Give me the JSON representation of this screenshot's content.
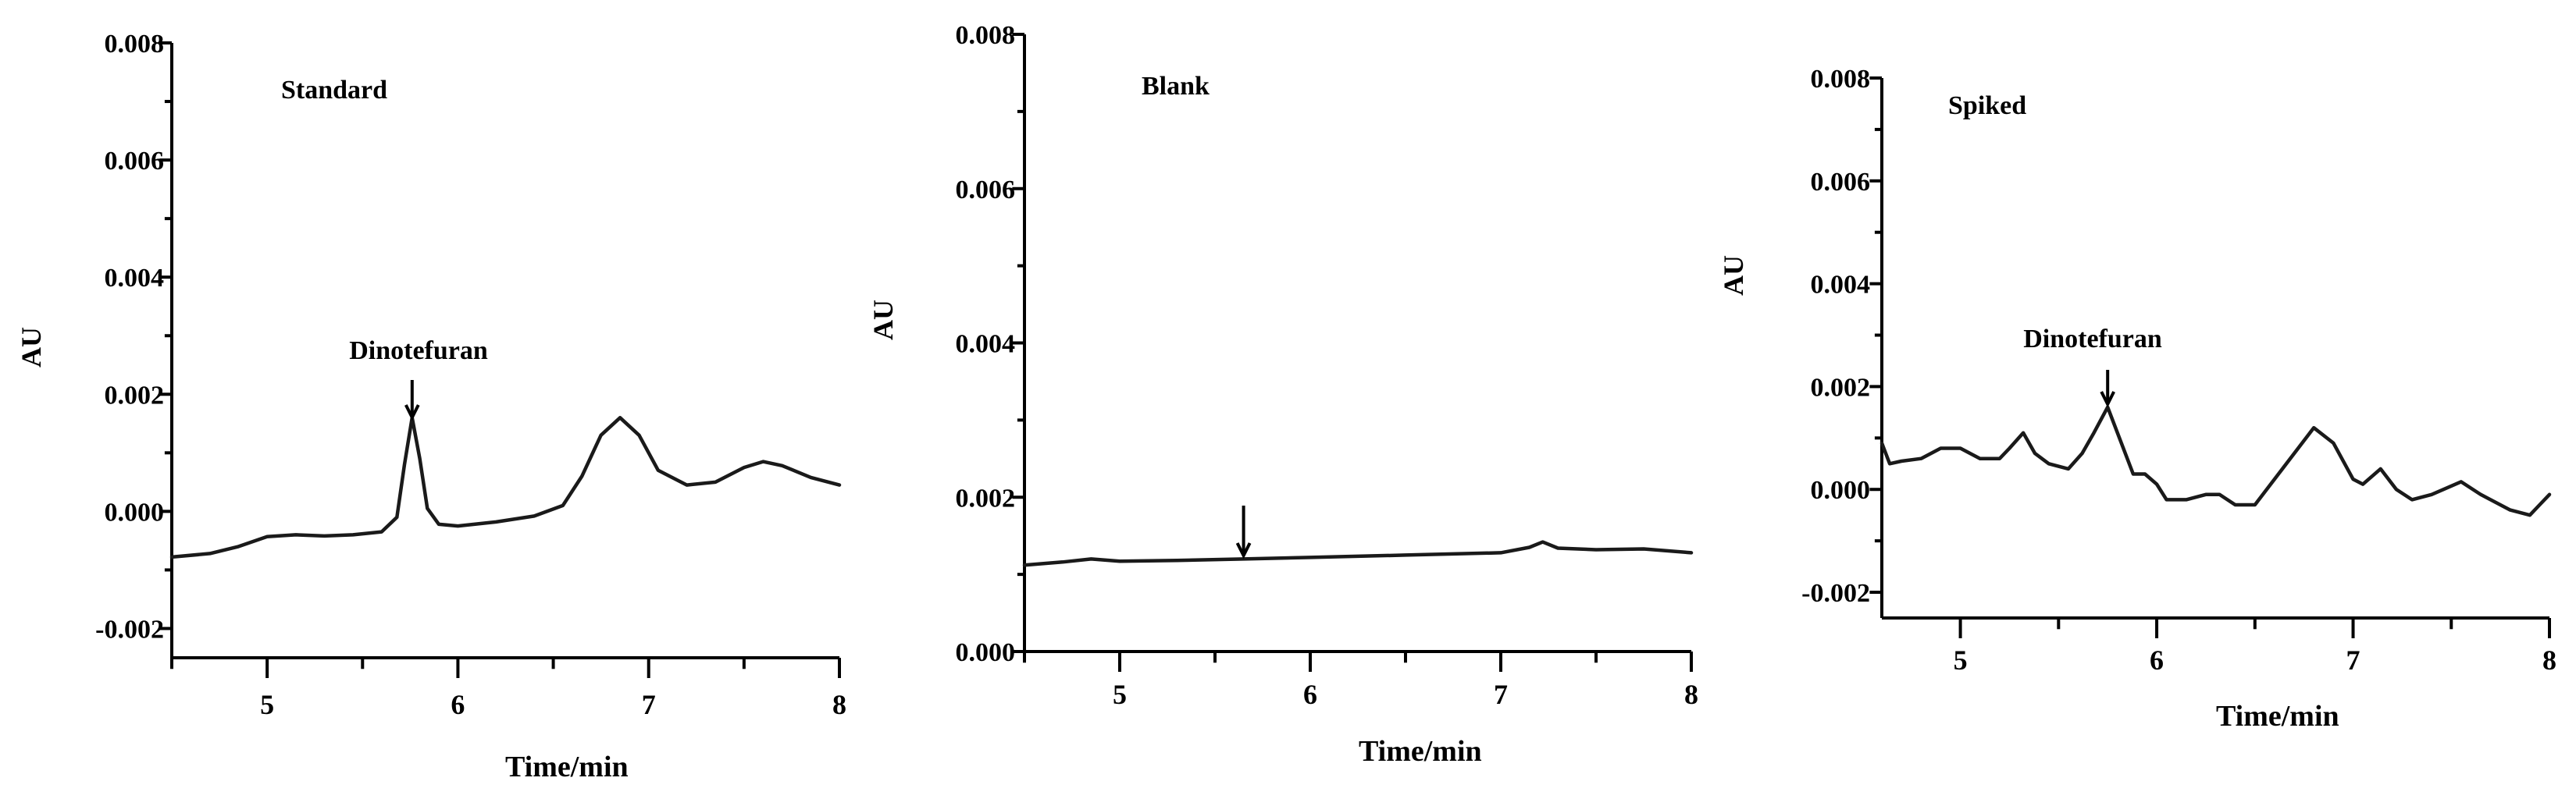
{
  "chart_data": [
    {
      "type": "line",
      "title": "Standard",
      "xlabel": "Time/min",
      "ylabel": "AU",
      "xlim": [
        4.5,
        8
      ],
      "ylim": [
        -0.0025,
        0.008
      ],
      "xticks": [
        "5",
        "6",
        "7",
        "8"
      ],
      "yticks": [
        "-0.002",
        "0.000",
        "0.002",
        "0.004",
        "0.006",
        "0.008"
      ],
      "annotations": [
        {
          "text": "Dinotefuran",
          "x": 5.76
        }
      ],
      "series": [
        {
          "x": [
            4.5,
            4.7,
            4.85,
            5.0,
            5.15,
            5.3,
            5.45,
            5.6,
            5.68,
            5.72,
            5.76,
            5.8,
            5.84,
            5.9,
            6.0,
            6.2,
            6.4,
            6.55,
            6.65,
            6.75,
            6.85,
            6.95,
            7.05,
            7.2,
            7.35,
            7.5,
            7.6,
            7.7,
            7.85,
            8.0
          ],
          "y": [
            -0.00078,
            -0.00072,
            -0.0006,
            -0.00043,
            -0.0004,
            -0.00042,
            -0.0004,
            -0.00035,
            -0.0001,
            0.0008,
            0.0016,
            0.0009,
            5e-05,
            -0.00022,
            -0.00025,
            -0.00018,
            -8e-05,
            0.0001,
            0.0006,
            0.0013,
            0.0016,
            0.0013,
            0.0007,
            0.00045,
            0.0005,
            0.00075,
            0.00085,
            0.00078,
            0.00058,
            0.00045
          ]
        }
      ]
    },
    {
      "type": "line",
      "title": "Blank",
      "xlabel": "Time/min",
      "ylabel": "AU",
      "xlim": [
        4.5,
        8
      ],
      "ylim": [
        0.0,
        0.008
      ],
      "xticks": [
        "5",
        "6",
        "7",
        "8"
      ],
      "yticks": [
        "0.000",
        "0.002",
        "0.004",
        "0.006",
        "0.008"
      ],
      "annotations": [
        {
          "text": "",
          "x": 5.65
        }
      ],
      "series": [
        {
          "x": [
            4.5,
            4.7,
            4.85,
            5.0,
            5.3,
            5.65,
            6.0,
            6.5,
            7.0,
            7.15,
            7.22,
            7.3,
            7.5,
            7.75,
            8.0
          ],
          "y": [
            0.00112,
            0.00116,
            0.0012,
            0.00117,
            0.00118,
            0.0012,
            0.00122,
            0.00125,
            0.00128,
            0.00135,
            0.00142,
            0.00134,
            0.00132,
            0.00133,
            0.00128
          ]
        }
      ]
    },
    {
      "type": "line",
      "title": "Spiked",
      "xlabel": "Time/min",
      "ylabel": "AU",
      "xlim": [
        4.6,
        8
      ],
      "ylim": [
        -0.0025,
        0.008
      ],
      "xticks": [
        "5",
        "6",
        "7",
        "8"
      ],
      "yticks": [
        "-0.002",
        "0.000",
        "0.002",
        "0.004",
        "0.006",
        "0.008"
      ],
      "annotations": [
        {
          "text": "Dinotefuran",
          "x": 5.75
        }
      ],
      "series": [
        {
          "x": [
            4.6,
            4.64,
            4.7,
            4.8,
            4.9,
            5.0,
            5.1,
            5.2,
            5.25,
            5.32,
            5.38,
            5.45,
            5.55,
            5.62,
            5.68,
            5.75,
            5.82,
            5.88,
            5.94,
            6.0,
            6.05,
            6.15,
            6.25,
            6.32,
            6.4,
            6.5,
            6.6,
            6.7,
            6.8,
            6.9,
            7.0,
            7.05,
            7.14,
            7.22,
            7.3,
            7.4,
            7.55,
            7.65,
            7.8,
            7.9,
            7.95,
            8.0
          ],
          "y": [
            0.0009,
            0.0005,
            0.00055,
            0.0006,
            0.0008,
            0.0008,
            0.0006,
            0.0006,
            0.0008,
            0.0011,
            0.0007,
            0.0005,
            0.0004,
            0.0007,
            0.0011,
            0.0016,
            0.0009,
            0.0003,
            0.0003,
            0.0001,
            -0.0002,
            -0.0002,
            -0.0001,
            -0.0001,
            -0.0003,
            -0.0003,
            0.0002,
            0.0007,
            0.0012,
            0.0009,
            0.0002,
            0.0001,
            0.0004,
            0.0,
            -0.0002,
            -0.0001,
            0.00015,
            -0.0001,
            -0.0004,
            -0.0005,
            -0.0003,
            -0.0001
          ]
        }
      ]
    }
  ]
}
